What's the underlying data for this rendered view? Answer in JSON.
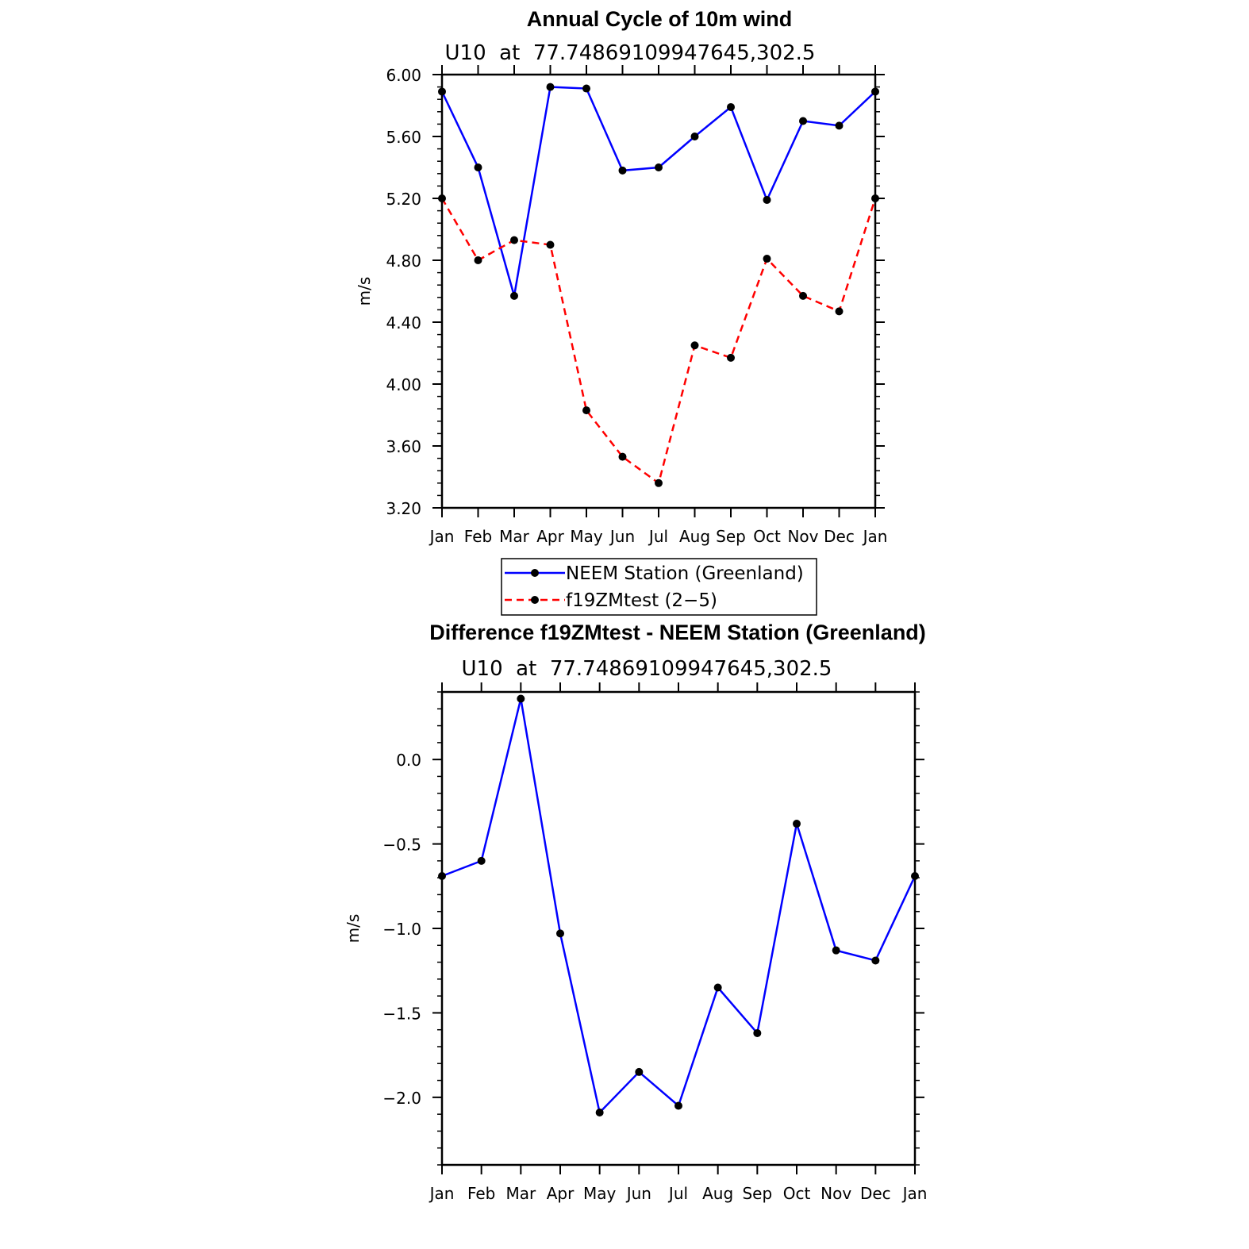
{
  "chart_data": [
    {
      "type": "line",
      "title": "Annual Cycle of 10m wind",
      "subtitle": "U10  at  77.74869109947645,302.5",
      "xlabel": "",
      "ylabel": "m/s",
      "categories": [
        "Jan",
        "Feb",
        "Mar",
        "Apr",
        "May",
        "Jun",
        "Jul",
        "Aug",
        "Sep",
        "Oct",
        "Nov",
        "Dec",
        "Jan"
      ],
      "ylim": [
        3.2,
        6.0
      ],
      "yticks": [
        "3.20",
        "3.60",
        "4.00",
        "4.40",
        "4.80",
        "5.20",
        "5.60",
        "6.00"
      ],
      "series": [
        {
          "name": "NEEM Station (Greenland)",
          "color": "#0000ff",
          "dash": "solid",
          "values": [
            5.89,
            5.4,
            4.57,
            5.92,
            5.91,
            5.38,
            5.4,
            5.6,
            5.79,
            5.19,
            5.7,
            5.67,
            5.89
          ]
        },
        {
          "name": "f19ZMtest (2−5)",
          "color": "#ff0000",
          "dash": "dashed",
          "values": [
            5.2,
            4.8,
            4.93,
            4.9,
            3.83,
            3.53,
            3.36,
            4.25,
            4.17,
            4.81,
            4.57,
            4.47,
            5.2
          ]
        }
      ],
      "legend": "below"
    },
    {
      "type": "line",
      "title": "Difference f19ZMtest - NEEM Station (Greenland)",
      "subtitle": "U10  at  77.74869109947645,302.5",
      "xlabel": "",
      "ylabel": "m/s",
      "categories": [
        "Jan",
        "Feb",
        "Mar",
        "Apr",
        "May",
        "Jun",
        "Jul",
        "Aug",
        "Sep",
        "Oct",
        "Nov",
        "Dec",
        "Jan"
      ],
      "ylim": [
        -2.4,
        0.4
      ],
      "yticks": [
        "−2.0",
        "−1.5",
        "−1.0",
        "−0.5",
        "0.0"
      ],
      "ytick_values": [
        -2.0,
        -1.5,
        -1.0,
        -0.5,
        0.0
      ],
      "series": [
        {
          "color": "#0000ff",
          "dash": "solid",
          "values": [
            -0.69,
            -0.6,
            0.36,
            -1.03,
            -2.09,
            -1.85,
            -2.05,
            -1.35,
            -1.62,
            -0.38,
            -1.13,
            -1.19,
            -0.69
          ]
        }
      ]
    }
  ]
}
